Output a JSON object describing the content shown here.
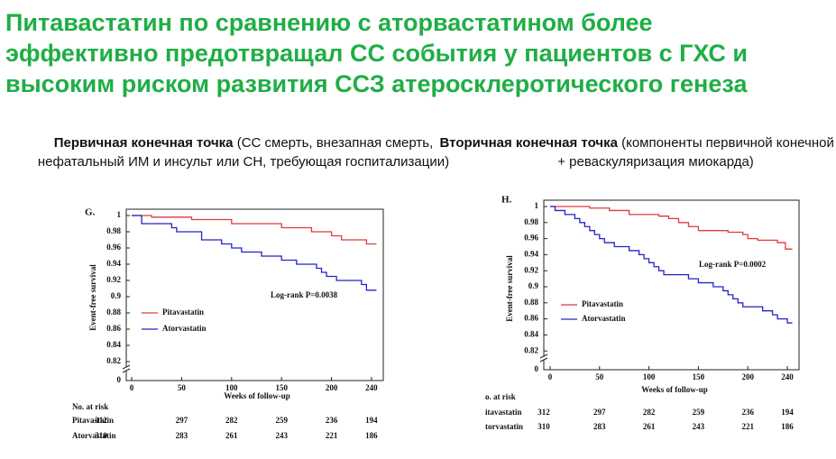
{
  "title_lines": [
    "Питавастатин по сравнению с аторвастатином более",
    "эффективно предотвращал СС события у пациентов с ГХС и",
    "высоким риском развития ССЗ атеросклеротического генеза"
  ],
  "chart_data": [
    {
      "type": "line",
      "step": true,
      "panel": "G.",
      "heading": "Первичная конечная точка",
      "subheading": " (СС смерть, внезапная смерть, нефатальный ИМ и инсульт или СН, требующая госпитализации)",
      "xlabel": "Weeks of follow-up",
      "ylabel": "Event-free survival",
      "xlim": [
        0,
        250
      ],
      "xticks": [
        0,
        50,
        100,
        150,
        200,
        240
      ],
      "ylim": [
        0.8,
        1
      ],
      "yticks": [
        0.82,
        0.84,
        0.86,
        0.88,
        0.9,
        0.92,
        0.94,
        0.96,
        0.98,
        1
      ],
      "axis_break_label": 0,
      "annotation": "Log-rank P=0.0038",
      "series": [
        {
          "name": "Pitavastatin",
          "color": "#e03a3a",
          "x": [
            0,
            20,
            60,
            100,
            150,
            180,
            200,
            210,
            235,
            245
          ],
          "values": [
            1,
            0.998,
            0.995,
            0.99,
            0.985,
            0.98,
            0.975,
            0.97,
            0.965,
            0.965
          ]
        },
        {
          "name": "Atorvastatin",
          "color": "#2323c8",
          "x": [
            0,
            10,
            40,
            45,
            70,
            90,
            100,
            110,
            130,
            150,
            165,
            185,
            190,
            195,
            205,
            230,
            235,
            245
          ],
          "values": [
            1,
            0.99,
            0.985,
            0.98,
            0.97,
            0.965,
            0.96,
            0.955,
            0.95,
            0.945,
            0.94,
            0.935,
            0.93,
            0.925,
            0.92,
            0.915,
            0.908,
            0.908
          ]
        }
      ],
      "risk_table": {
        "title": "No. at risk",
        "rows": [
          {
            "name": "Pitavastatin",
            "values": [
              312,
              297,
              282,
              259,
              236,
              194
            ]
          },
          {
            "name": "Atorvastatin",
            "values": [
              310,
              283,
              261,
              243,
              221,
              186
            ]
          }
        ]
      }
    },
    {
      "type": "line",
      "step": true,
      "panel": "H.",
      "heading": "Вторичная конечная точка",
      "subheading": " (компоненты первичной конечной точки + реваскуляризация миокарда)",
      "xlabel": "Weeks of follow-up",
      "ylabel": "Event-free survival",
      "xlim": [
        0,
        250
      ],
      "xticks": [
        0,
        50,
        100,
        150,
        200,
        240
      ],
      "ylim": [
        0.8,
        1
      ],
      "yticks": [
        0.82,
        0.84,
        0.86,
        0.88,
        0.9,
        0.92,
        0.94,
        0.96,
        0.98,
        1
      ],
      "axis_break_label": 0,
      "annotation": "Log-rank P=0.0002",
      "series": [
        {
          "name": "Pitavastatin",
          "color": "#e03a3a",
          "x": [
            0,
            40,
            60,
            80,
            110,
            120,
            130,
            140,
            150,
            180,
            195,
            200,
            210,
            230,
            238,
            245
          ],
          "values": [
            1,
            0.998,
            0.995,
            0.99,
            0.988,
            0.985,
            0.98,
            0.975,
            0.97,
            0.968,
            0.965,
            0.96,
            0.958,
            0.955,
            0.947,
            0.947
          ]
        },
        {
          "name": "Atorvastatin",
          "color": "#2323c8",
          "x": [
            0,
            5,
            15,
            25,
            30,
            35,
            40,
            45,
            50,
            55,
            65,
            80,
            90,
            95,
            100,
            105,
            110,
            115,
            140,
            150,
            165,
            175,
            180,
            185,
            190,
            195,
            215,
            225,
            230,
            240,
            245
          ],
          "values": [
            1,
            0.995,
            0.99,
            0.985,
            0.98,
            0.975,
            0.97,
            0.965,
            0.96,
            0.955,
            0.95,
            0.945,
            0.94,
            0.935,
            0.93,
            0.925,
            0.92,
            0.915,
            0.91,
            0.905,
            0.9,
            0.895,
            0.89,
            0.885,
            0.88,
            0.875,
            0.87,
            0.865,
            0.86,
            0.855,
            0.855
          ]
        }
      ],
      "risk_table": {
        "title": "o. at risk",
        "rows": [
          {
            "name": "itavastatin",
            "values": [
              312,
              297,
              282,
              259,
              236,
              194
            ]
          },
          {
            "name": "torvastatin",
            "values": [
              310,
              283,
              261,
              243,
              221,
              186
            ]
          }
        ]
      }
    }
  ]
}
